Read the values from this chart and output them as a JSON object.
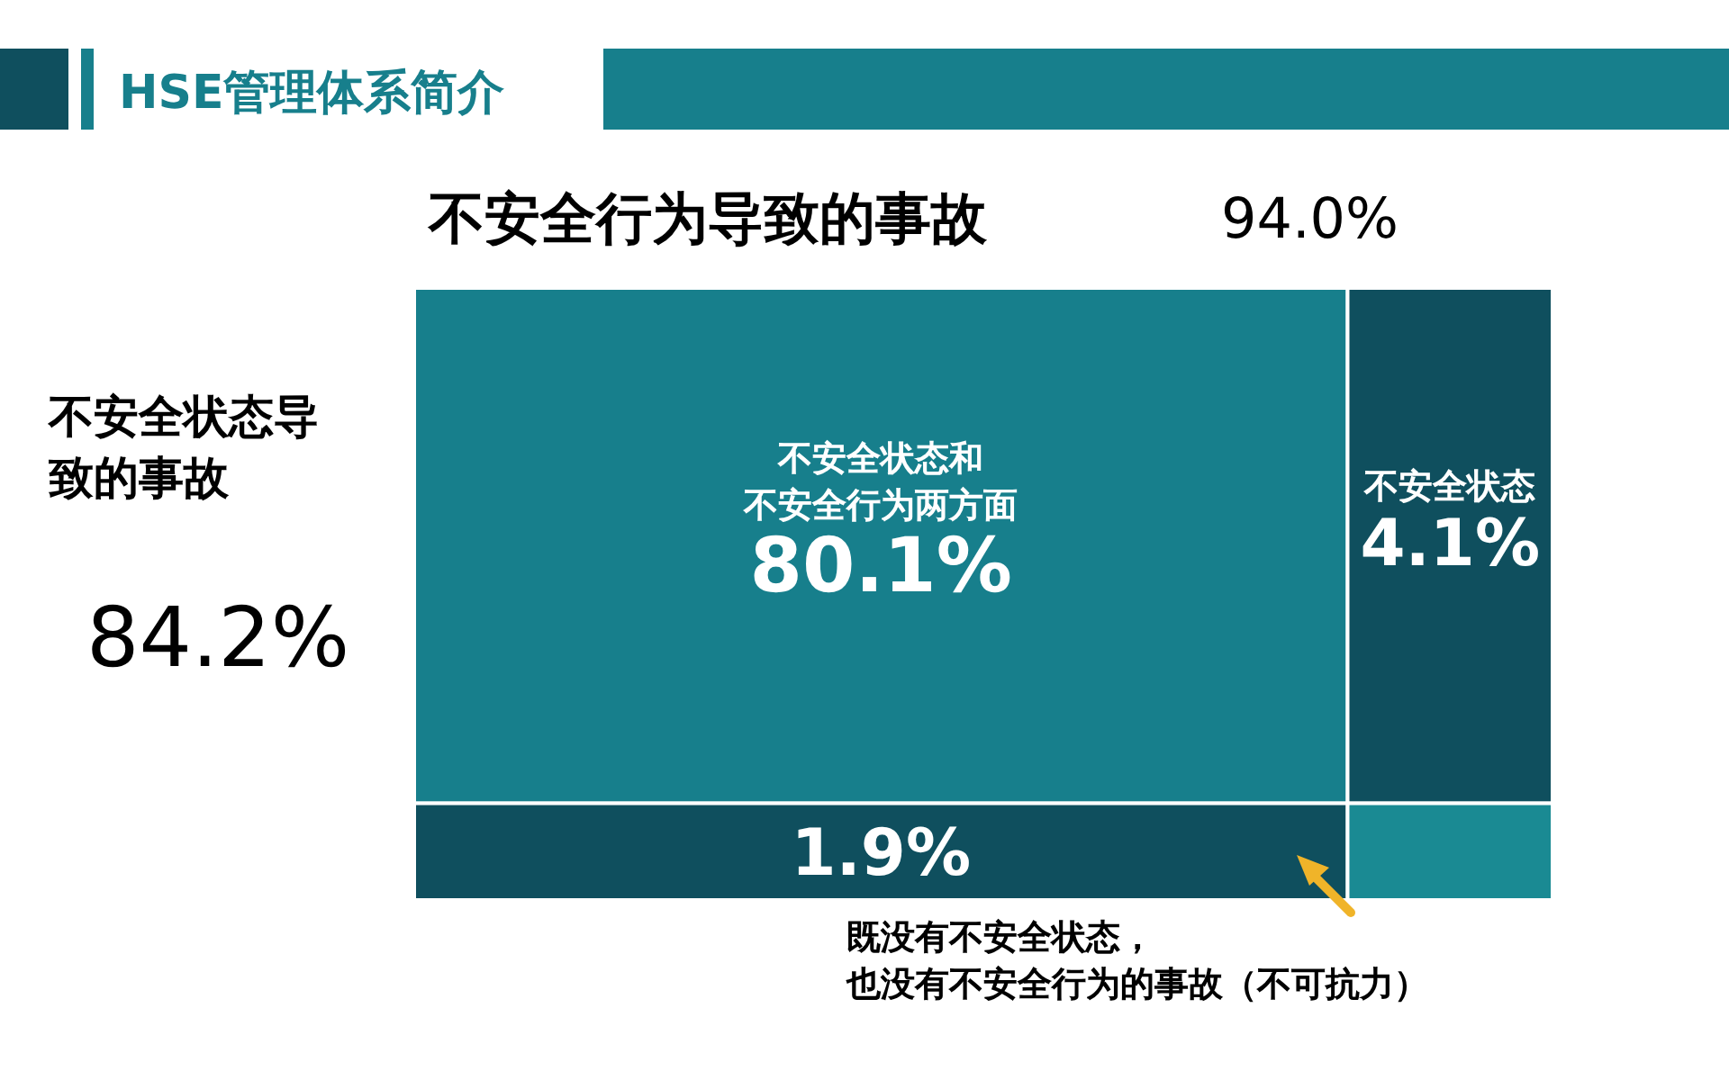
{
  "chart_data": {
    "type": "other",
    "title": "HSE管理体系简介",
    "categories": [
      "不安全状态和不安全行为两方面",
      "不安全状态",
      null,
      null
    ],
    "values": [
      80.1,
      4.1,
      1.9,
      null
    ],
    "value_labels": [
      "80.1%",
      "4.1%",
      "1.9%",
      null
    ],
    "colors": [
      "#177f8c",
      "#0f4f5e",
      "#0f4f5e",
      "#1a8a93"
    ],
    "annotations": [
      "不安全行为导致的事故",
      "94.0%",
      "不安全状态导致的事故",
      "84.2%",
      "既没有不安全状态，也没有不安全行为的事故（不可抗力）"
    ]
  }
}
